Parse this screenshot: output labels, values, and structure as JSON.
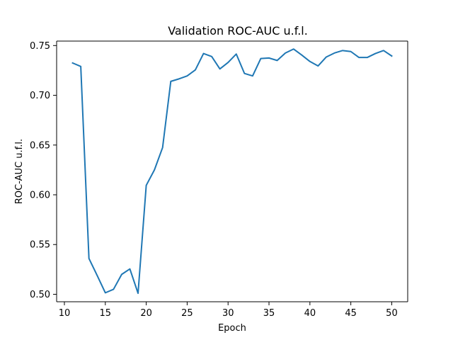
{
  "chart_data": {
    "type": "line",
    "title": "Validation ROC-AUC u.f.l.",
    "xlabel": "Epoch",
    "ylabel": "ROC-AUC u.f.l.",
    "xlim": [
      9.05,
      51.95
    ],
    "ylim": [
      0.4925,
      0.7545
    ],
    "xticks": [
      10,
      15,
      20,
      25,
      30,
      35,
      40,
      45,
      50
    ],
    "yticks": [
      0.5,
      0.55,
      0.6,
      0.65,
      0.7,
      0.75
    ],
    "xtick_labels": [
      "10",
      "15",
      "20",
      "25",
      "30",
      "35",
      "40",
      "45",
      "50"
    ],
    "ytick_labels": [
      "0.50",
      "0.55",
      "0.60",
      "0.65",
      "0.70",
      "0.75"
    ],
    "grid": false,
    "series": [
      {
        "color": "#1f77b4",
        "x": [
          11,
          12,
          13,
          14,
          15,
          16,
          17,
          18,
          19,
          20,
          21,
          22,
          23,
          24,
          25,
          26,
          27,
          28,
          29,
          30,
          31,
          32,
          33,
          34,
          35,
          36,
          37,
          38,
          39,
          40,
          41,
          42,
          43,
          44,
          45,
          46,
          47,
          48,
          49,
          50
        ],
        "y": [
          0.7325,
          0.729,
          0.536,
          0.519,
          0.5015,
          0.505,
          0.52,
          0.5255,
          0.501,
          0.6095,
          0.625,
          0.6475,
          0.714,
          0.7165,
          0.7195,
          0.7255,
          0.742,
          0.739,
          0.7265,
          0.733,
          0.7415,
          0.722,
          0.7195,
          0.737,
          0.7375,
          0.735,
          0.7425,
          0.7465,
          0.7405,
          0.734,
          0.7295,
          0.7385,
          0.7425,
          0.745,
          0.744,
          0.738,
          0.738,
          0.742,
          0.745,
          0.7395
        ]
      }
    ]
  }
}
